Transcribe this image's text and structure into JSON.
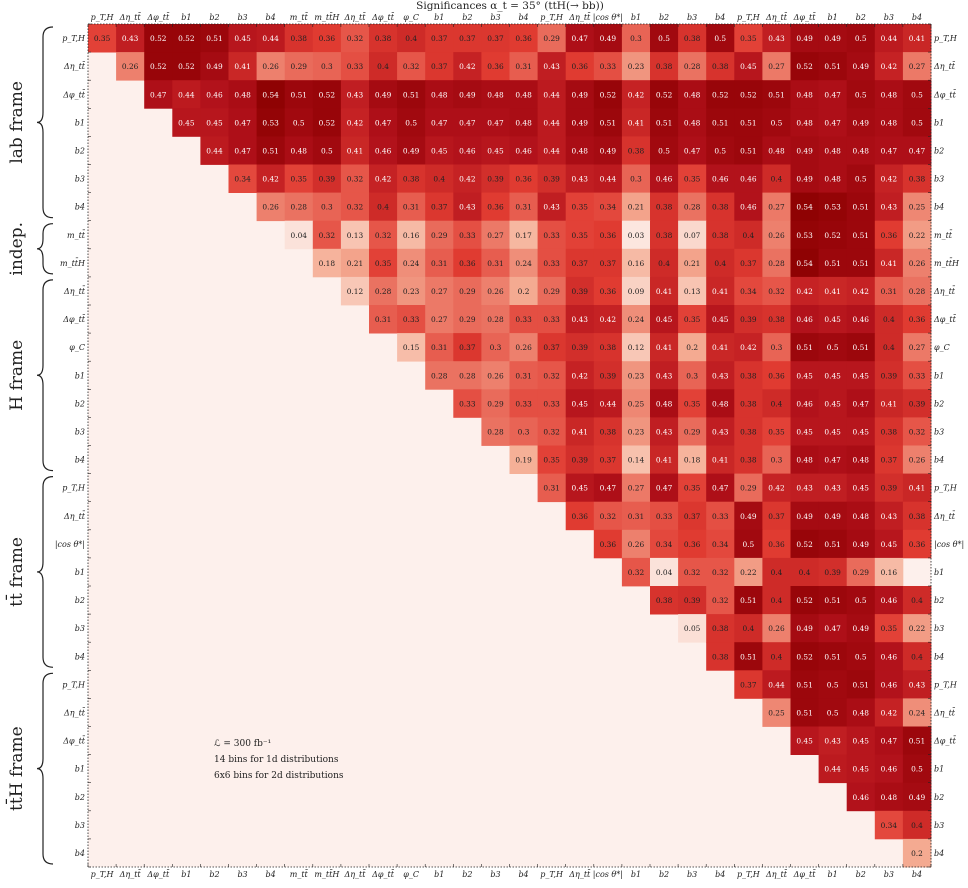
{
  "chart_data": {
    "type": "heatmap",
    "title": "Significances α_t = 35° (tt̄H(→ bb̄))",
    "labels": [
      "p_T,H",
      "Δη_tt̄",
      "Δφ_tt̄",
      "b1",
      "b2",
      "b3",
      "b4",
      "m_tt̄",
      "m_tt̄H",
      "Δη_tt̄",
      "Δφ_tt̄",
      "φ_C",
      "b1",
      "b2",
      "b3",
      "b4",
      "p_T,H",
      "Δη_tt̄",
      "|cos θ*|",
      "b1",
      "b2",
      "b3",
      "b4",
      "p_T,H",
      "Δη_tt̄",
      "Δφ_tt̄",
      "b1",
      "b2",
      "b3",
      "b4"
    ],
    "groups": [
      {
        "name": "lab frame",
        "start": 0,
        "end": 6
      },
      {
        "name": "indep.",
        "start": 7,
        "end": 8
      },
      {
        "name": "H frame",
        "start": 9,
        "end": 15
      },
      {
        "name": "tt̄ frame",
        "start": 16,
        "end": 22
      },
      {
        "name": "tt̄H frame",
        "start": 23,
        "end": 29
      }
    ],
    "colorscale": [
      "#fdf0ec",
      "#8b0000"
    ],
    "vrange": [
      0,
      0.55
    ],
    "rows": [
      [
        0.35,
        0.43,
        0.52,
        0.52,
        0.51,
        0.45,
        0.44,
        0.38,
        0.36,
        0.32,
        0.38,
        0.4,
        0.37,
        0.37,
        0.37,
        0.36,
        0.29,
        0.47,
        0.49,
        0.3,
        0.5,
        0.38,
        0.5,
        0.35,
        0.43,
        0.49,
        0.49,
        0.5,
        0.44,
        0.41
      ],
      [
        0.26,
        0.52,
        0.52,
        0.49,
        0.41,
        0.26,
        0.29,
        0.3,
        0.33,
        0.4,
        0.32,
        0.37,
        0.42,
        0.36,
        0.31,
        0.43,
        0.36,
        0.33,
        0.23,
        0.38,
        0.28,
        0.38,
        0.45,
        0.27,
        0.52,
        0.51,
        0.49,
        0.42,
        0.27
      ],
      [
        0.47,
        0.44,
        0.46,
        0.48,
        0.54,
        0.51,
        0.52,
        0.43,
        0.49,
        0.51,
        0.48,
        0.49,
        0.48,
        0.48,
        0.44,
        0.49,
        0.52,
        0.42,
        0.52,
        0.48,
        0.52,
        0.52,
        0.51,
        0.48,
        0.47,
        0.5,
        0.48,
        0.5
      ],
      [
        0.45,
        0.45,
        0.47,
        0.53,
        0.5,
        0.52,
        0.42,
        0.47,
        0.5,
        0.47,
        0.47,
        0.47,
        0.48,
        0.44,
        0.49,
        0.51,
        0.41,
        0.51,
        0.48,
        0.51,
        0.51,
        0.5,
        0.48,
        0.47,
        0.49,
        0.48,
        0.5
      ],
      [
        0.44,
        0.47,
        0.51,
        0.48,
        0.5,
        0.41,
        0.46,
        0.49,
        0.45,
        0.46,
        0.45,
        0.46,
        0.44,
        0.48,
        0.49,
        0.38,
        0.5,
        0.47,
        0.5,
        0.51,
        0.48,
        0.49,
        0.48,
        0.48,
        0.47,
        0.47
      ],
      [
        0.34,
        0.42,
        0.35,
        0.39,
        0.32,
        0.42,
        0.38,
        0.4,
        0.42,
        0.39,
        0.36,
        0.39,
        0.43,
        0.44,
        0.3,
        0.46,
        0.35,
        0.46,
        0.46,
        0.4,
        0.49,
        0.48,
        0.5,
        0.42,
        0.38
      ],
      [
        0.26,
        0.28,
        0.3,
        0.32,
        0.4,
        0.31,
        0.37,
        0.43,
        0.36,
        0.31,
        0.43,
        0.35,
        0.34,
        0.21,
        0.38,
        0.28,
        0.38,
        0.46,
        0.27,
        0.54,
        0.53,
        0.51,
        0.43,
        0.25
      ],
      [
        0.04,
        0.32,
        0.13,
        0.32,
        0.16,
        0.29,
        0.33,
        0.27,
        0.17,
        0.33,
        0.35,
        0.36,
        0.03,
        0.38,
        0.07,
        0.38,
        0.4,
        0.26,
        0.53,
        0.52,
        0.51,
        0.36,
        0.22
      ],
      [
        0.18,
        0.21,
        0.35,
        0.24,
        0.31,
        0.36,
        0.31,
        0.24,
        0.33,
        0.37,
        0.37,
        0.16,
        0.4,
        0.21,
        0.4,
        0.37,
        0.28,
        0.54,
        0.51,
        0.51,
        0.41,
        0.26
      ],
      [
        0.12,
        0.28,
        0.23,
        0.27,
        0.29,
        0.26,
        0.2,
        0.29,
        0.39,
        0.36,
        0.09,
        0.41,
        0.13,
        0.41,
        0.34,
        0.32,
        0.42,
        0.41,
        0.42,
        0.31,
        0.28
      ],
      [
        0.31,
        0.33,
        0.27,
        0.29,
        0.28,
        0.33,
        0.33,
        0.43,
        0.42,
        0.24,
        0.45,
        0.35,
        0.45,
        0.39,
        0.38,
        0.46,
        0.45,
        0.46,
        0.4,
        0.36
      ],
      [
        0.15,
        0.31,
        0.37,
        0.3,
        0.26,
        0.37,
        0.39,
        0.38,
        0.12,
        0.41,
        0.2,
        0.41,
        0.42,
        0.3,
        0.51,
        0.5,
        0.51,
        0.4,
        0.27
      ],
      [
        0.28,
        0.28,
        0.26,
        0.31,
        0.32,
        0.42,
        0.39,
        0.23,
        0.43,
        0.3,
        0.43,
        0.38,
        0.36,
        0.45,
        0.45,
        0.45,
        0.39,
        0.33
      ],
      [
        0.33,
        0.29,
        0.33,
        0.33,
        0.45,
        0.44,
        0.25,
        0.48,
        0.35,
        0.48,
        0.38,
        0.4,
        0.46,
        0.45,
        0.47,
        0.41,
        0.39
      ],
      [
        0.28,
        0.3,
        0.32,
        0.41,
        0.38,
        0.23,
        0.43,
        0.29,
        0.43,
        0.38,
        0.35,
        0.45,
        0.45,
        0.45,
        0.38,
        0.32
      ],
      [
        0.19,
        0.35,
        0.39,
        0.37,
        0.14,
        0.41,
        0.18,
        0.41,
        0.38,
        0.3,
        0.48,
        0.47,
        0.48,
        0.37,
        0.26
      ],
      [
        0.31,
        0.45,
        0.47,
        0.27,
        0.47,
        0.35,
        0.47,
        0.29,
        0.42,
        0.43,
        0.43,
        0.45,
        0.39,
        0.41
      ],
      [
        0.36,
        0.32,
        0.31,
        0.33,
        0.37,
        0.33,
        0.49,
        0.37,
        0.49,
        0.49,
        0.48,
        0.43,
        0.38
      ],
      [
        0.36,
        0.26,
        0.34,
        0.36,
        0.34,
        0.5,
        0.36,
        0.52,
        0.51,
        0.49,
        0.45,
        0.36
      ],
      [
        0.32,
        0.04,
        0.32,
        0.32,
        0.22,
        0.4,
        0.4,
        0.39,
        0.29,
        0.16
      ],
      [
        0.38,
        0.39,
        0.32,
        0.51,
        0.4,
        0.52,
        0.51,
        0.5,
        0.46,
        0.4
      ],
      [
        0.05,
        0.38,
        0.4,
        0.26,
        0.49,
        0.47,
        0.49,
        0.35,
        0.22
      ],
      [
        0.38,
        0.51,
        0.4,
        0.52,
        0.51,
        0.5,
        0.46,
        0.4
      ],
      [
        0.37,
        0.44,
        0.51,
        0.5,
        0.51,
        0.46,
        0.43
      ],
      [
        0.25,
        0.51,
        0.5,
        0.48,
        0.42,
        0.24
      ],
      [
        0.45,
        0.43,
        0.45,
        0.47,
        0.51
      ],
      [
        0.44,
        0.45,
        0.46,
        0.5
      ],
      [
        0.46,
        0.48,
        0.49
      ],
      [
        0.34,
        0.4
      ],
      [
        0.2
      ]
    ],
    "annotations": [
      "ℒ = 300 fb⁻¹",
      "14 bins for 1d distributions",
      "6x6 bins for 2d distributions"
    ]
  }
}
